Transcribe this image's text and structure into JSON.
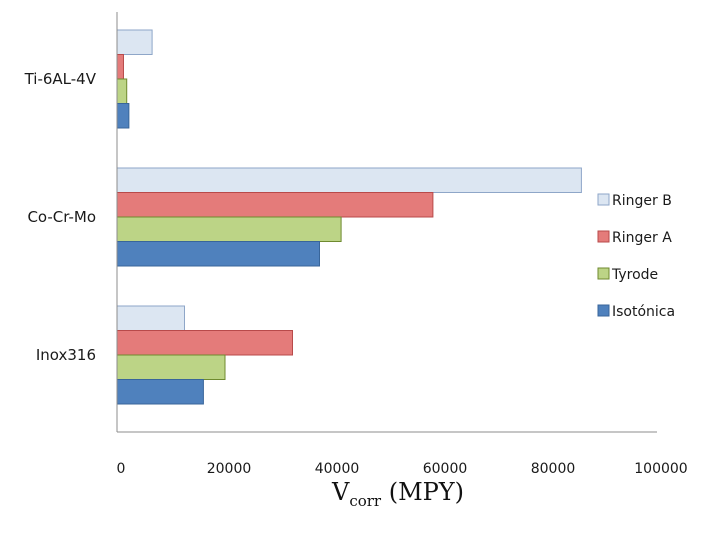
{
  "chart_data": {
    "type": "bar",
    "orientation": "horizontal",
    "categories": [
      "Ti-6AL-4V",
      "Co-Cr-Mo",
      "Inox316"
    ],
    "series": [
      {
        "name": "Ringer B",
        "color": "#dce6f2",
        "stroke": "#8ea6c8",
        "values": [
          6500,
          86000,
          12500
        ]
      },
      {
        "name": "Ringer A",
        "color": "#e47b7a",
        "stroke": "#b84a4a",
        "values": [
          1200,
          58500,
          32500
        ]
      },
      {
        "name": "Tyrode",
        "color": "#bcd486",
        "stroke": "#6f8a2f",
        "values": [
          1800,
          41500,
          20000
        ]
      },
      {
        "name": "Isotónica",
        "color": "#4f81bd",
        "stroke": "#38659a",
        "values": [
          2200,
          37500,
          16000
        ]
      }
    ],
    "legend_order": [
      "Ringer B",
      "Ringer A",
      "Tyrode",
      "Isotónica"
    ],
    "xticks": [
      "0",
      "20000",
      "40000",
      "60000",
      "80000",
      "100000"
    ],
    "xlim": [
      0,
      100000
    ],
    "xlabel_main": "V",
    "xlabel_sub": "corr",
    "xlabel_unit": " (MPY)",
    "grid": false,
    "legend_position": "right"
  }
}
